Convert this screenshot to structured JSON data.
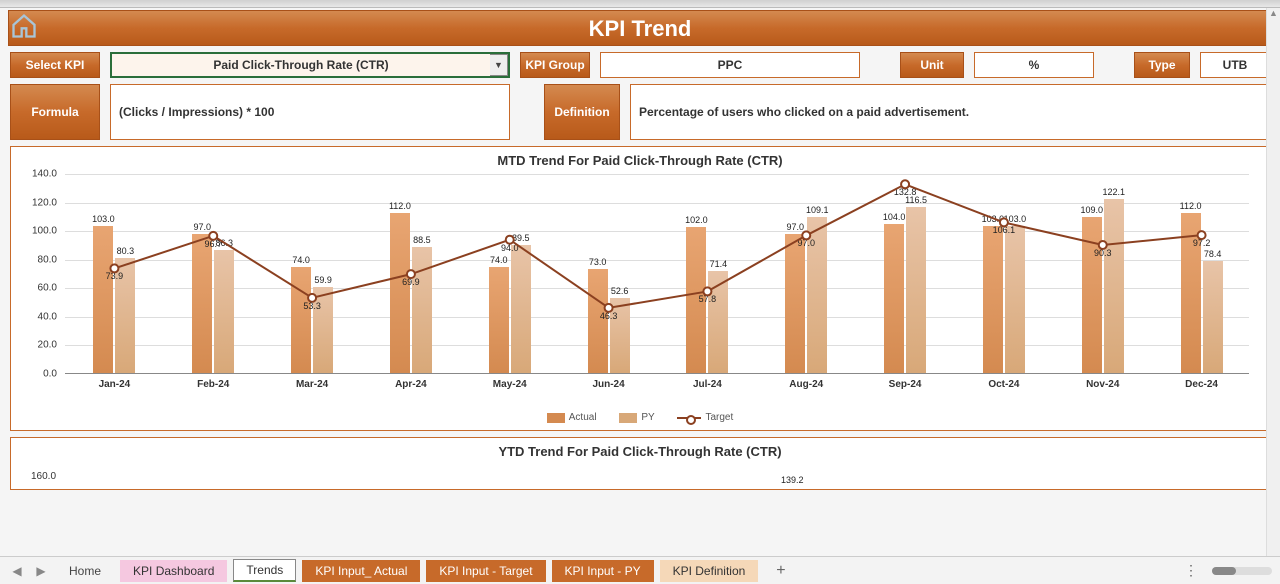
{
  "title": "KPI Trend",
  "selectKpi": {
    "label": "Select KPI",
    "value": "Paid Click-Through Rate (CTR)"
  },
  "kpiGroup": {
    "label": "KPI Group",
    "value": "PPC"
  },
  "unit": {
    "label": "Unit",
    "value": "%"
  },
  "type": {
    "label": "Type",
    "value": "UTB"
  },
  "formula": {
    "label": "Formula",
    "value": "(Clicks / Impressions) * 100"
  },
  "definition": {
    "label": "Definition",
    "value": "Percentage of users who clicked on a paid advertisement."
  },
  "mtdChart": {
    "title": "MTD Trend For Paid Click-Through Rate (CTR)",
    "type": "bar+line",
    "ylim": [
      0,
      140
    ],
    "ytick_step": 20,
    "categories": [
      "Jan-24",
      "Feb-24",
      "Mar-24",
      "Apr-24",
      "May-24",
      "Jun-24",
      "Jul-24",
      "Aug-24",
      "Sep-24",
      "Oct-24",
      "Nov-24",
      "Dec-24"
    ],
    "series": {
      "actual": {
        "label": "Actual",
        "color": "#d48a50",
        "values": [
          103.0,
          97.0,
          74.0,
          112.0,
          74.0,
          73.0,
          102.0,
          97.0,
          104.0,
          103.0,
          109.0,
          112.0
        ]
      },
      "py": {
        "label": "PY",
        "color": "#d8a878",
        "values": [
          80.3,
          86.3,
          59.9,
          88.5,
          89.5,
          52.6,
          71.4,
          109.1,
          116.5,
          103.0,
          122.1,
          78.4
        ]
      },
      "target": {
        "label": "Target",
        "color": "#8b4020",
        "marker": "circle",
        "values": [
          73.9,
          96.7,
          53.3,
          69.9,
          94.0,
          46.3,
          57.8,
          97.0,
          132.8,
          106.1,
          90.3,
          97.2
        ]
      }
    },
    "legend": [
      "Actual",
      "PY",
      "Target"
    ],
    "background_color": "#ffffff"
  },
  "ytdChart": {
    "title": "YTD Trend For Paid Click-Through Rate (CTR)",
    "visible_ytick": "160.0",
    "visible_value": "139.2"
  },
  "tabs": {
    "items": [
      {
        "label": "Home",
        "style": "plain"
      },
      {
        "label": "KPI Dashboard",
        "style": "pink"
      },
      {
        "label": "Trends",
        "style": "active"
      },
      {
        "label": "KPI Input_ Actual",
        "style": "orange"
      },
      {
        "label": "KPI Input - Target",
        "style": "orange"
      },
      {
        "label": "KPI Input - PY",
        "style": "orange"
      },
      {
        "label": "KPI Definition",
        "style": "light-orange"
      }
    ]
  },
  "colors": {
    "banner_dark": "#b85a1a",
    "banner_light": "#d48a50",
    "border": "#c76a2a",
    "soft_bg": "#fdf4ec"
  }
}
